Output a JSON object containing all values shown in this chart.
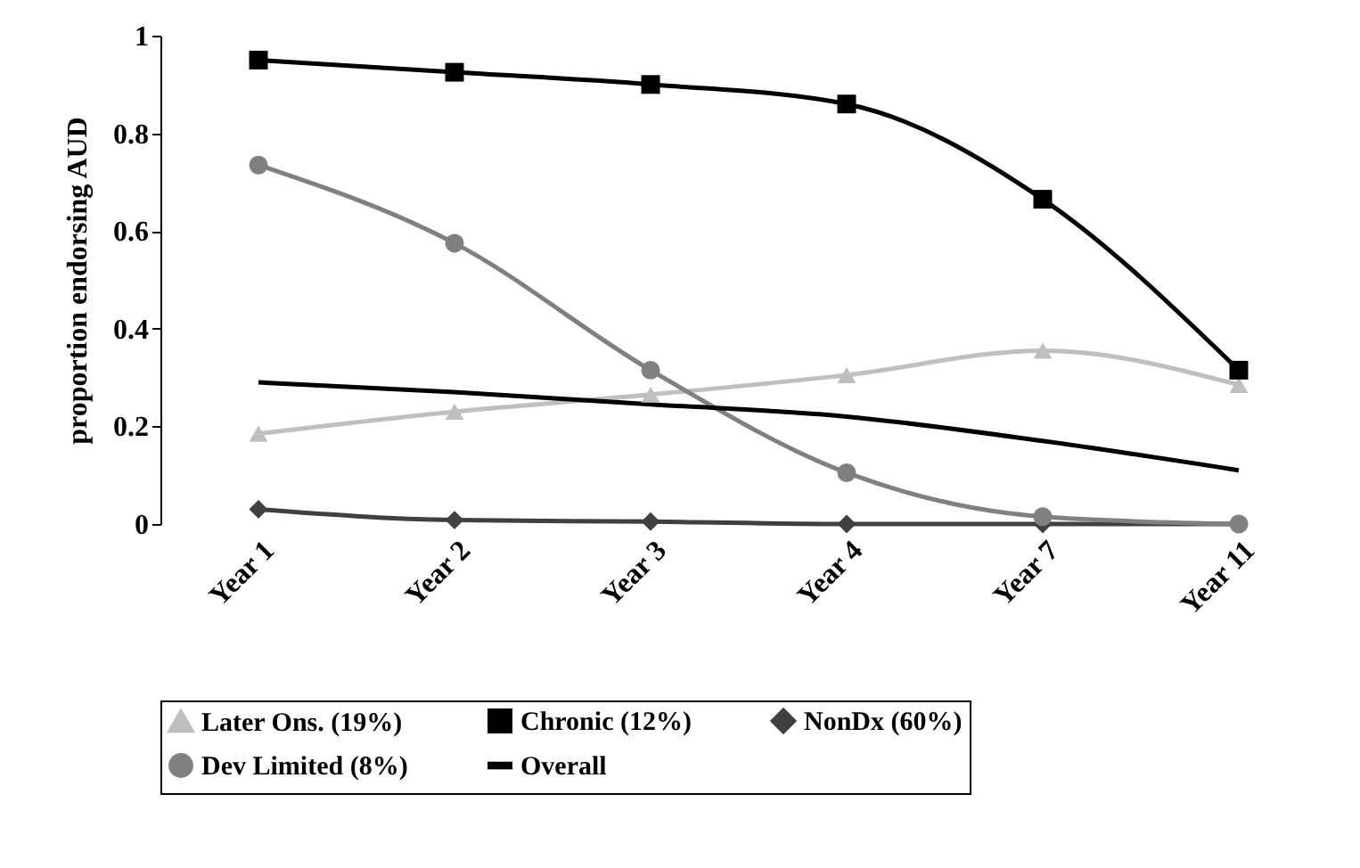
{
  "chart_data": {
    "type": "line",
    "ylabel": "proportion endorsing AUD",
    "categories": [
      "Year 1",
      "Year 2",
      "Year 3",
      "Year 4",
      "Year 7",
      "Year 11"
    ],
    "ylim": [
      0,
      1
    ],
    "yticks": [
      0,
      0.2,
      0.4,
      0.6,
      0.8,
      1
    ],
    "grid": false,
    "legend": "bottom",
    "line_style": "solid",
    "series": [
      {
        "name": "Later Ons. (19%)",
        "color": "#bfbfbf",
        "marker": "triangle",
        "values": [
          0.185,
          0.23,
          0.265,
          0.305,
          0.355,
          0.285
        ]
      },
      {
        "name": "Chronic (12%)",
        "color": "#000000",
        "marker": "square",
        "values": [
          0.95,
          0.925,
          0.9,
          0.86,
          0.665,
          0.315
        ]
      },
      {
        "name": "NonDx (60%)",
        "color": "#404040",
        "marker": "diamond",
        "values": [
          0.03,
          0.008,
          0.005,
          0,
          0,
          0
        ]
      },
      {
        "name": "Dev Limited (8%)",
        "color": "#808080",
        "marker": "circle",
        "values": [
          0.735,
          0.575,
          0.315,
          0.105,
          0.015,
          0
        ]
      },
      {
        "name": "Overall",
        "color": "#000000",
        "marker": "none",
        "values": [
          0.29,
          0.27,
          0.245,
          0.22,
          0.17,
          0.11
        ]
      }
    ]
  }
}
